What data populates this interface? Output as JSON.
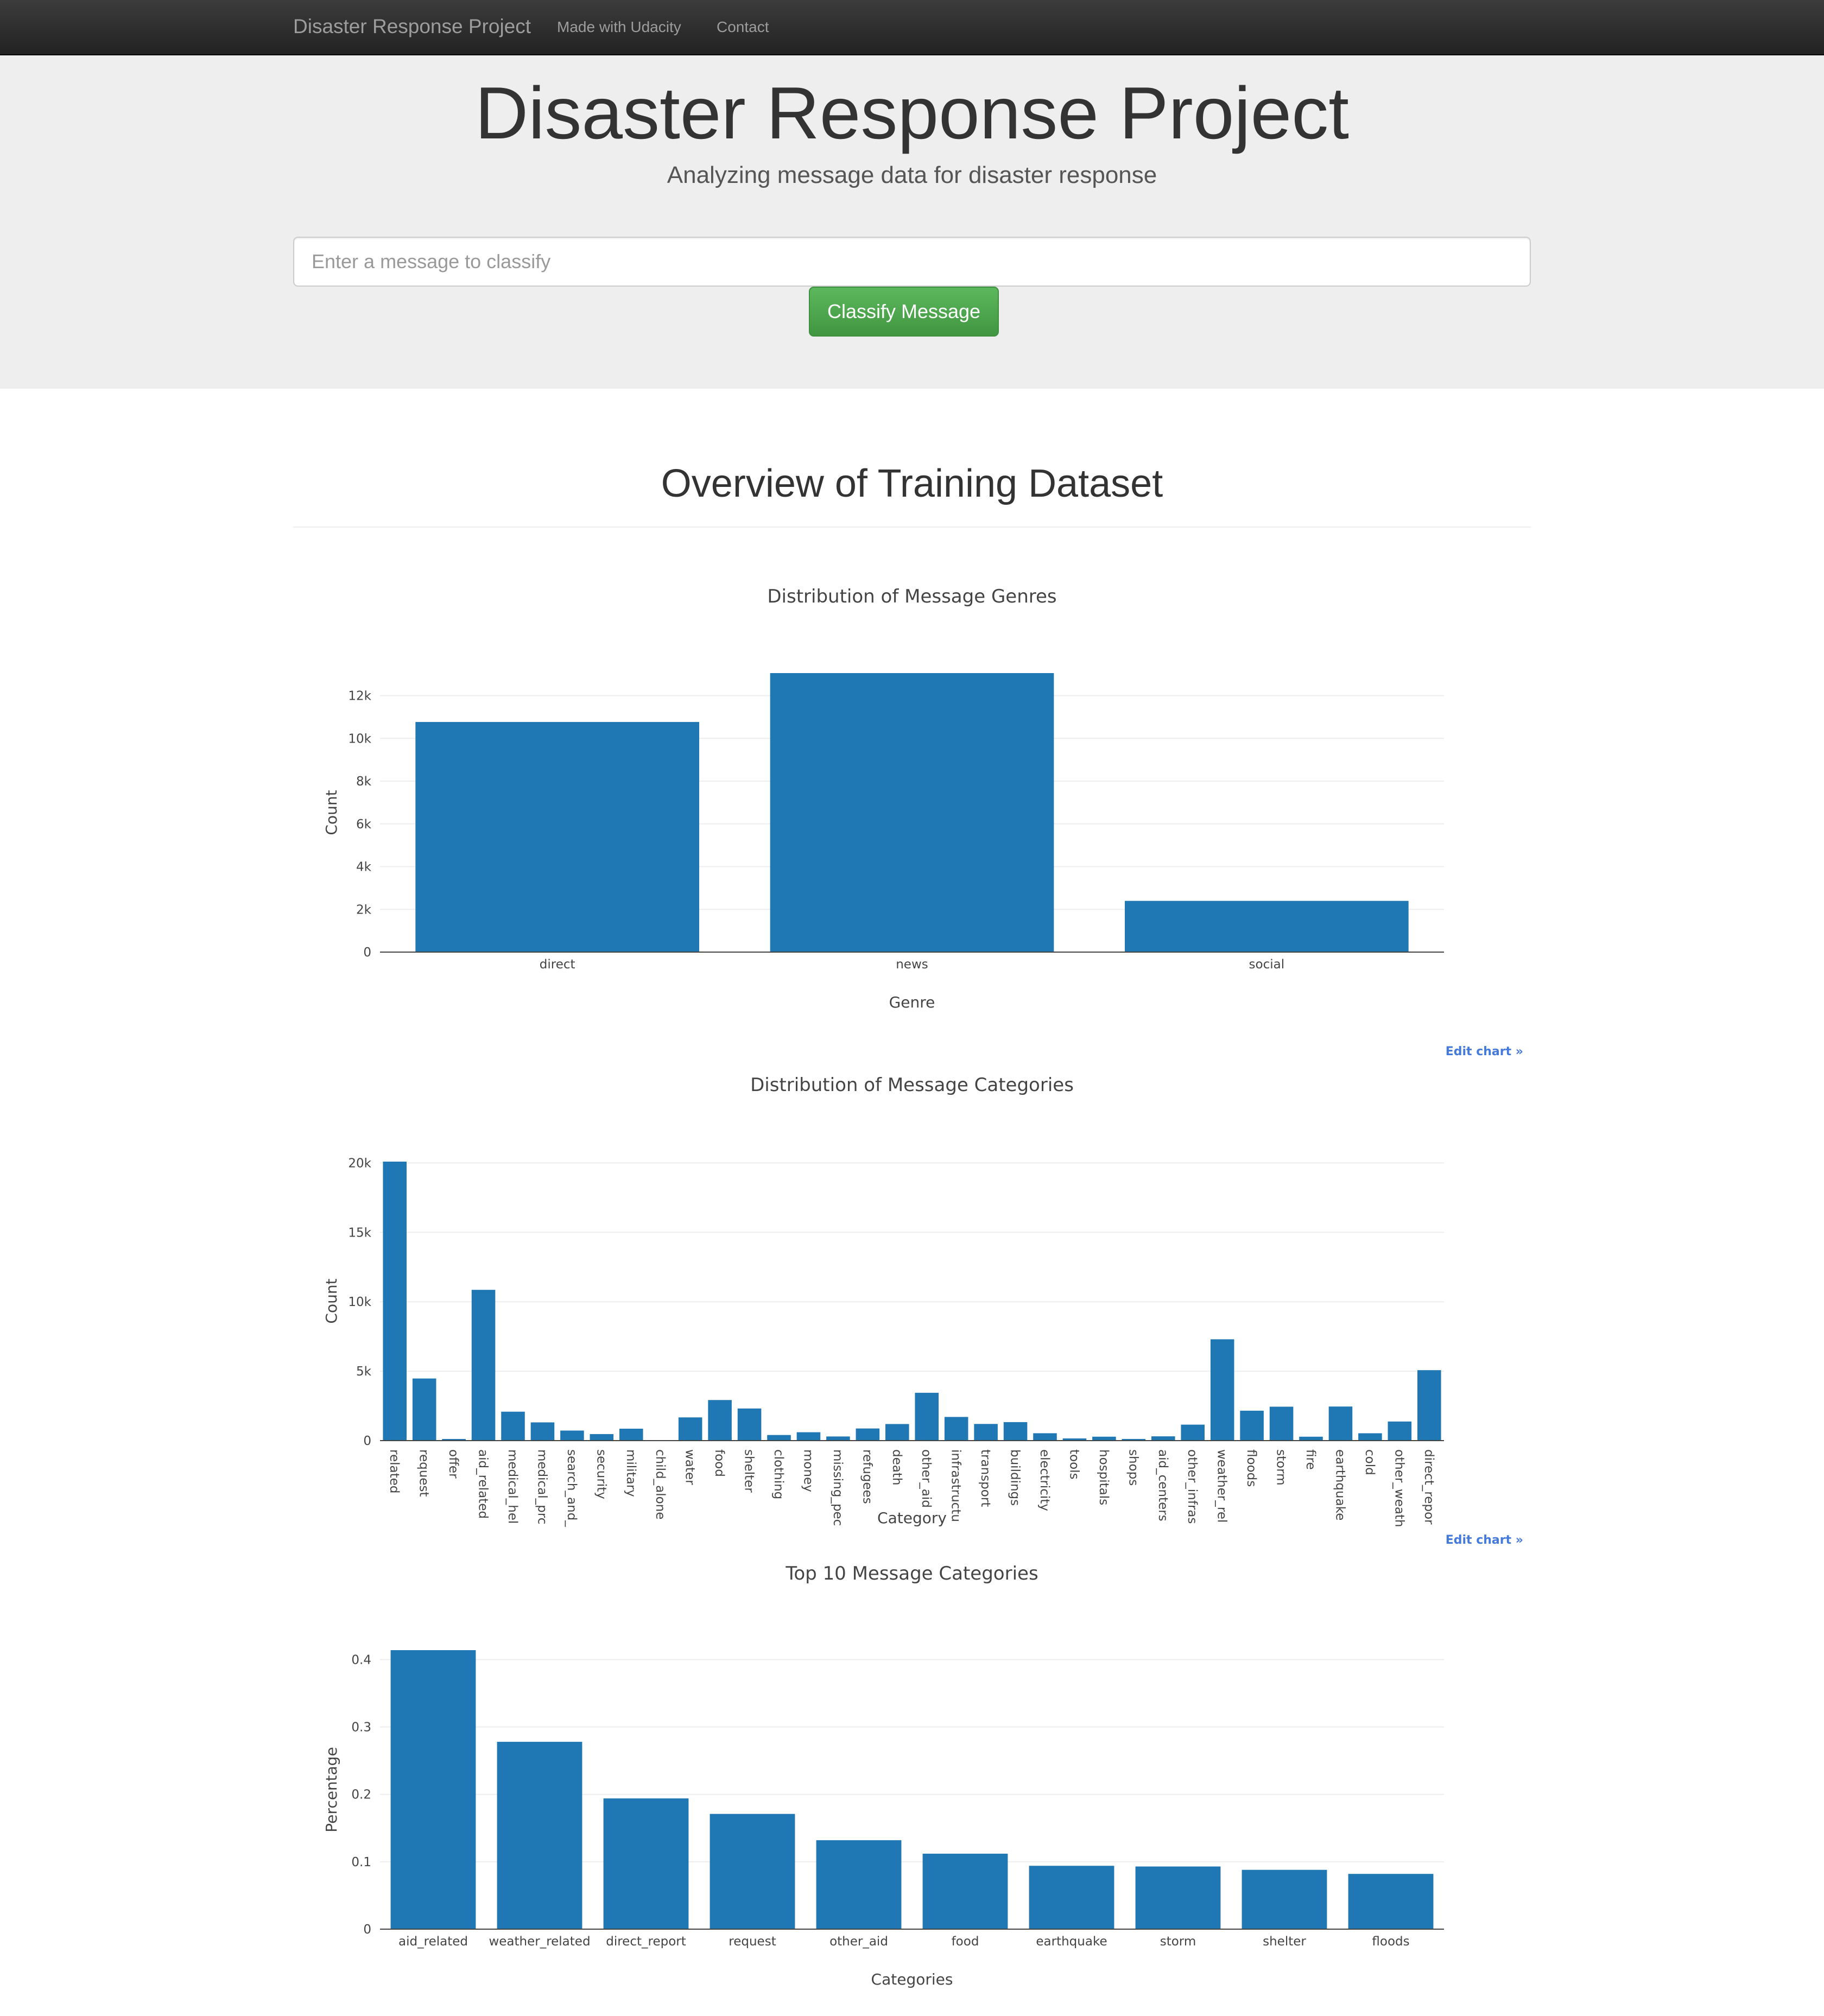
{
  "navbar": {
    "brand": "Disaster Response Project",
    "links": [
      "Made with Udacity",
      "Contact"
    ]
  },
  "jumbotron": {
    "title": "Disaster Response Project",
    "subtitle": "Analyzing message data for disaster response",
    "input_placeholder": "Enter a message to classify",
    "button_label": "Classify Message"
  },
  "overview": {
    "title": "Overview of Training Dataset"
  },
  "edit_chart_label": "Edit chart »",
  "colors": {
    "bar": "#1f77b4",
    "grid": "#eeeeee",
    "axis": "#444444",
    "button": "#5cb85c"
  },
  "chart_data": [
    {
      "type": "bar",
      "title": "Distribution of Message Genres",
      "xlabel": "Genre",
      "ylabel": "Count",
      "categories": [
        "direct",
        "news",
        "social"
      ],
      "values": [
        10766,
        13054,
        2396
      ],
      "ylim": [
        0,
        13054
      ],
      "yticks": [
        0,
        2000,
        4000,
        6000,
        8000,
        10000,
        12000
      ],
      "ytick_labels": [
        "0",
        "2k",
        "4k",
        "6k",
        "8k",
        "10k",
        "12k"
      ],
      "grid": true
    },
    {
      "type": "bar",
      "title": "Distribution of Message Categories",
      "xlabel": "Category",
      "ylabel": "Count",
      "categories": [
        "related",
        "request",
        "offer",
        "aid_related",
        "medical_hel",
        "medical_prc",
        "search_and_",
        "security",
        "military",
        "child_alone",
        "water",
        "food",
        "shelter",
        "clothing",
        "money",
        "missing_pec",
        "refugees",
        "death",
        "other_aid",
        "infrastructu",
        "transport",
        "buildings",
        "electricity",
        "tools",
        "hospitals",
        "shops",
        "aid_centers",
        "other_infras",
        "weather_rel",
        "floods",
        "storm",
        "fire",
        "earthquake",
        "cold",
        "other_weath",
        "direct_repor"
      ],
      "values": [
        20094,
        4474,
        118,
        10860,
        2084,
        1313,
        724,
        471,
        860,
        0,
        1672,
        2923,
        2314,
        405,
        604,
        298,
        875,
        1194,
        3446,
        1705,
        1201,
        1333,
        532,
        159,
        283,
        120,
        309,
        1151,
        7297,
        2155,
        2443,
        282,
        2455,
        530,
        1376,
        5075
      ],
      "ylim": [
        0,
        20094
      ],
      "yticks": [
        0,
        5000,
        10000,
        15000,
        20000
      ],
      "ytick_labels": [
        "0",
        "5k",
        "10k",
        "15k",
        "20k"
      ],
      "grid": true
    },
    {
      "type": "bar",
      "title": "Top 10 Message Categories",
      "xlabel": "Categories",
      "ylabel": "Percentage",
      "categories": [
        "aid_related",
        "weather_related",
        "direct_report",
        "request",
        "other_aid",
        "food",
        "earthquake",
        "storm",
        "shelter",
        "floods"
      ],
      "values": [
        0.414,
        0.278,
        0.194,
        0.171,
        0.132,
        0.112,
        0.094,
        0.093,
        0.088,
        0.082
      ],
      "ylim": [
        0,
        0.414
      ],
      "yticks": [
        0,
        0.1,
        0.2,
        0.3,
        0.4
      ],
      "ytick_labels": [
        "0",
        "0.1",
        "0.2",
        "0.3",
        "0.4"
      ],
      "grid": true
    }
  ]
}
